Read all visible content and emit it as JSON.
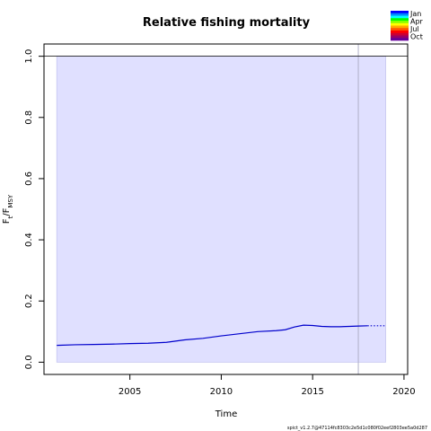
{
  "chart_data": {
    "type": "line",
    "title": "Relative fishing mortality",
    "xlabel": "Time",
    "ylabel_main": "F",
    "ylabel_sub1": "t",
    "ylabel_sep": "/F",
    "ylabel_sub2": "MSY",
    "xlim": [
      2000.3,
      2020.2
    ],
    "ylim": [
      -0.04,
      1.04
    ],
    "x_ticks": [
      2005,
      2010,
      2015,
      2020
    ],
    "y_ticks": [
      0.0,
      0.2,
      0.4,
      0.6,
      0.8,
      1.0
    ],
    "x_tick_labels": [
      "2005",
      "2010",
      "2015",
      "2020"
    ],
    "y_tick_labels": [
      "0.0",
      "0.2",
      "0.4",
      "0.6",
      "0.8",
      "1.0"
    ],
    "reference_line_y": 1.0,
    "vertical_line_x": 2017.5,
    "confidence_band": {
      "x_start": 2001,
      "x_end": 2019,
      "lower": 0.0,
      "upper": 1.0,
      "color": "#e0e0ff"
    },
    "series": [
      {
        "color": "#0000cc",
        "style": "solid",
        "x": [
          2001,
          2002,
          2003,
          2004,
          2005,
          2006,
          2007,
          2008,
          2009,
          2010,
          2011,
          2012,
          2013,
          2013.5,
          2014,
          2014.5,
          2015,
          2015.5,
          2016,
          2016.5,
          2017,
          2017.5,
          2018
        ],
        "y": [
          0.055,
          0.057,
          0.058,
          0.059,
          0.061,
          0.062,
          0.065,
          0.073,
          0.078,
          0.086,
          0.093,
          0.1,
          0.103,
          0.106,
          0.115,
          0.121,
          0.12,
          0.117,
          0.116,
          0.116,
          0.117,
          0.118,
          0.119
        ]
      },
      {
        "color": "#0000cc",
        "style": "dotted",
        "x": [
          2018,
          2018.5,
          2019
        ],
        "y": [
          0.119,
          0.119,
          0.119
        ]
      }
    ],
    "legend": {
      "placement": "top-right",
      "labels": [
        "Jan",
        "Apr",
        "Jul",
        "Oct"
      ],
      "gradient_colors": [
        "#0000ff",
        "#0088ff",
        "#00ffff",
        "#00ff00",
        "#88ff00",
        "#ffff00",
        "#ffaa00",
        "#ff5500",
        "#ff0000",
        "#cc0033",
        "#990066",
        "#660099"
      ]
    },
    "footer": "spict_v1.2.7@47114fc8303c2e5d1c080f02eef2803ee5a0d287"
  }
}
